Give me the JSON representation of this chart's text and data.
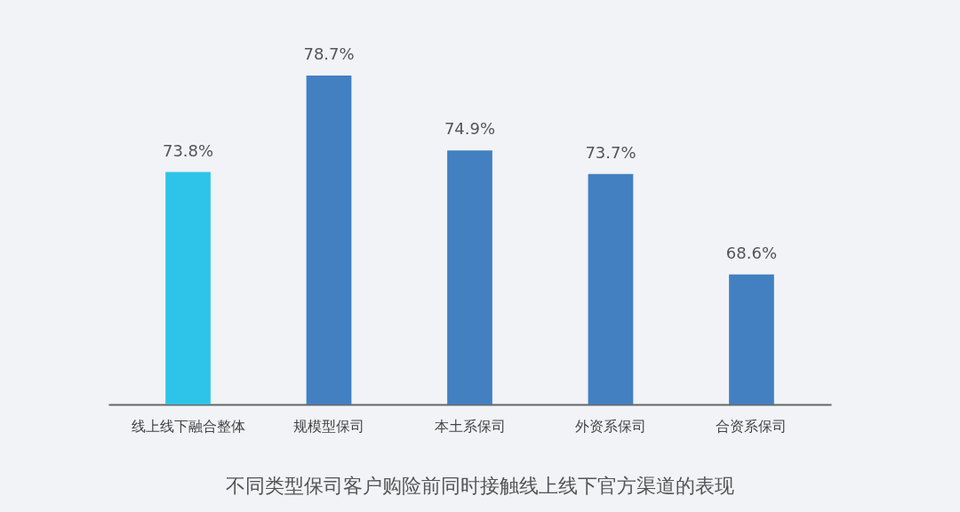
{
  "chart_data": {
    "type": "bar",
    "title": "不同类型保司客户购险前同时接触线上线下官方渠道的表现",
    "categories": [
      "线上线下融合整体",
      "规模型保司",
      "本土系保司",
      "外资系保司",
      "合资系保司"
    ],
    "values": [
      73.8,
      78.7,
      74.9,
      73.7,
      68.6
    ],
    "value_labels": [
      "73.8%",
      "78.7%",
      "74.9%",
      "73.7%",
      "68.6%"
    ],
    "colors": [
      "#2ec4e9",
      "#4280c2",
      "#4280c2",
      "#4280c2",
      "#4280c2"
    ],
    "ylim": [
      62,
      78.7
    ],
    "tick_labels": "x",
    "grid": false
  }
}
